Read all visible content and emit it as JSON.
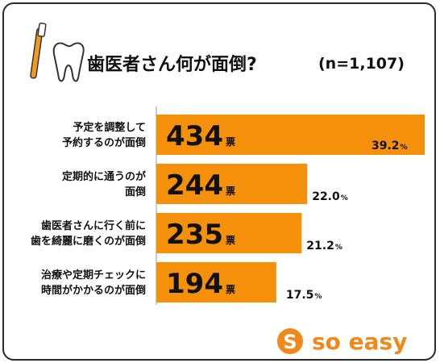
{
  "chart_data": {
    "type": "bar",
    "orientation": "horizontal",
    "title": "歯医者さん何が面倒?",
    "sample_note": "(n=1,107)",
    "unit_label": "票",
    "categories": [
      [
        "予定を調整して",
        "予約するのが面倒"
      ],
      [
        "定期的に通うのが",
        "面倒"
      ],
      [
        "歯医者さんに行く前に",
        "歯を綺麗に磨くのが面倒"
      ],
      [
        "治療や定期チェックに",
        "時間がかかるのが面倒"
      ]
    ],
    "values": [
      434,
      244,
      235,
      194
    ],
    "percents": [
      "39.2",
      "22.0",
      "21.2",
      "17.5"
    ],
    "percent_sign": "%",
    "xlim": [
      0,
      434
    ],
    "grid": false,
    "legend": "none"
  },
  "brand": {
    "logo_text": "so easy",
    "logo_mark": "S"
  },
  "colors": {
    "bar": "#f5900a",
    "accent": "#f0881a",
    "axis": "#bbbbbb",
    "text": "#111111"
  }
}
